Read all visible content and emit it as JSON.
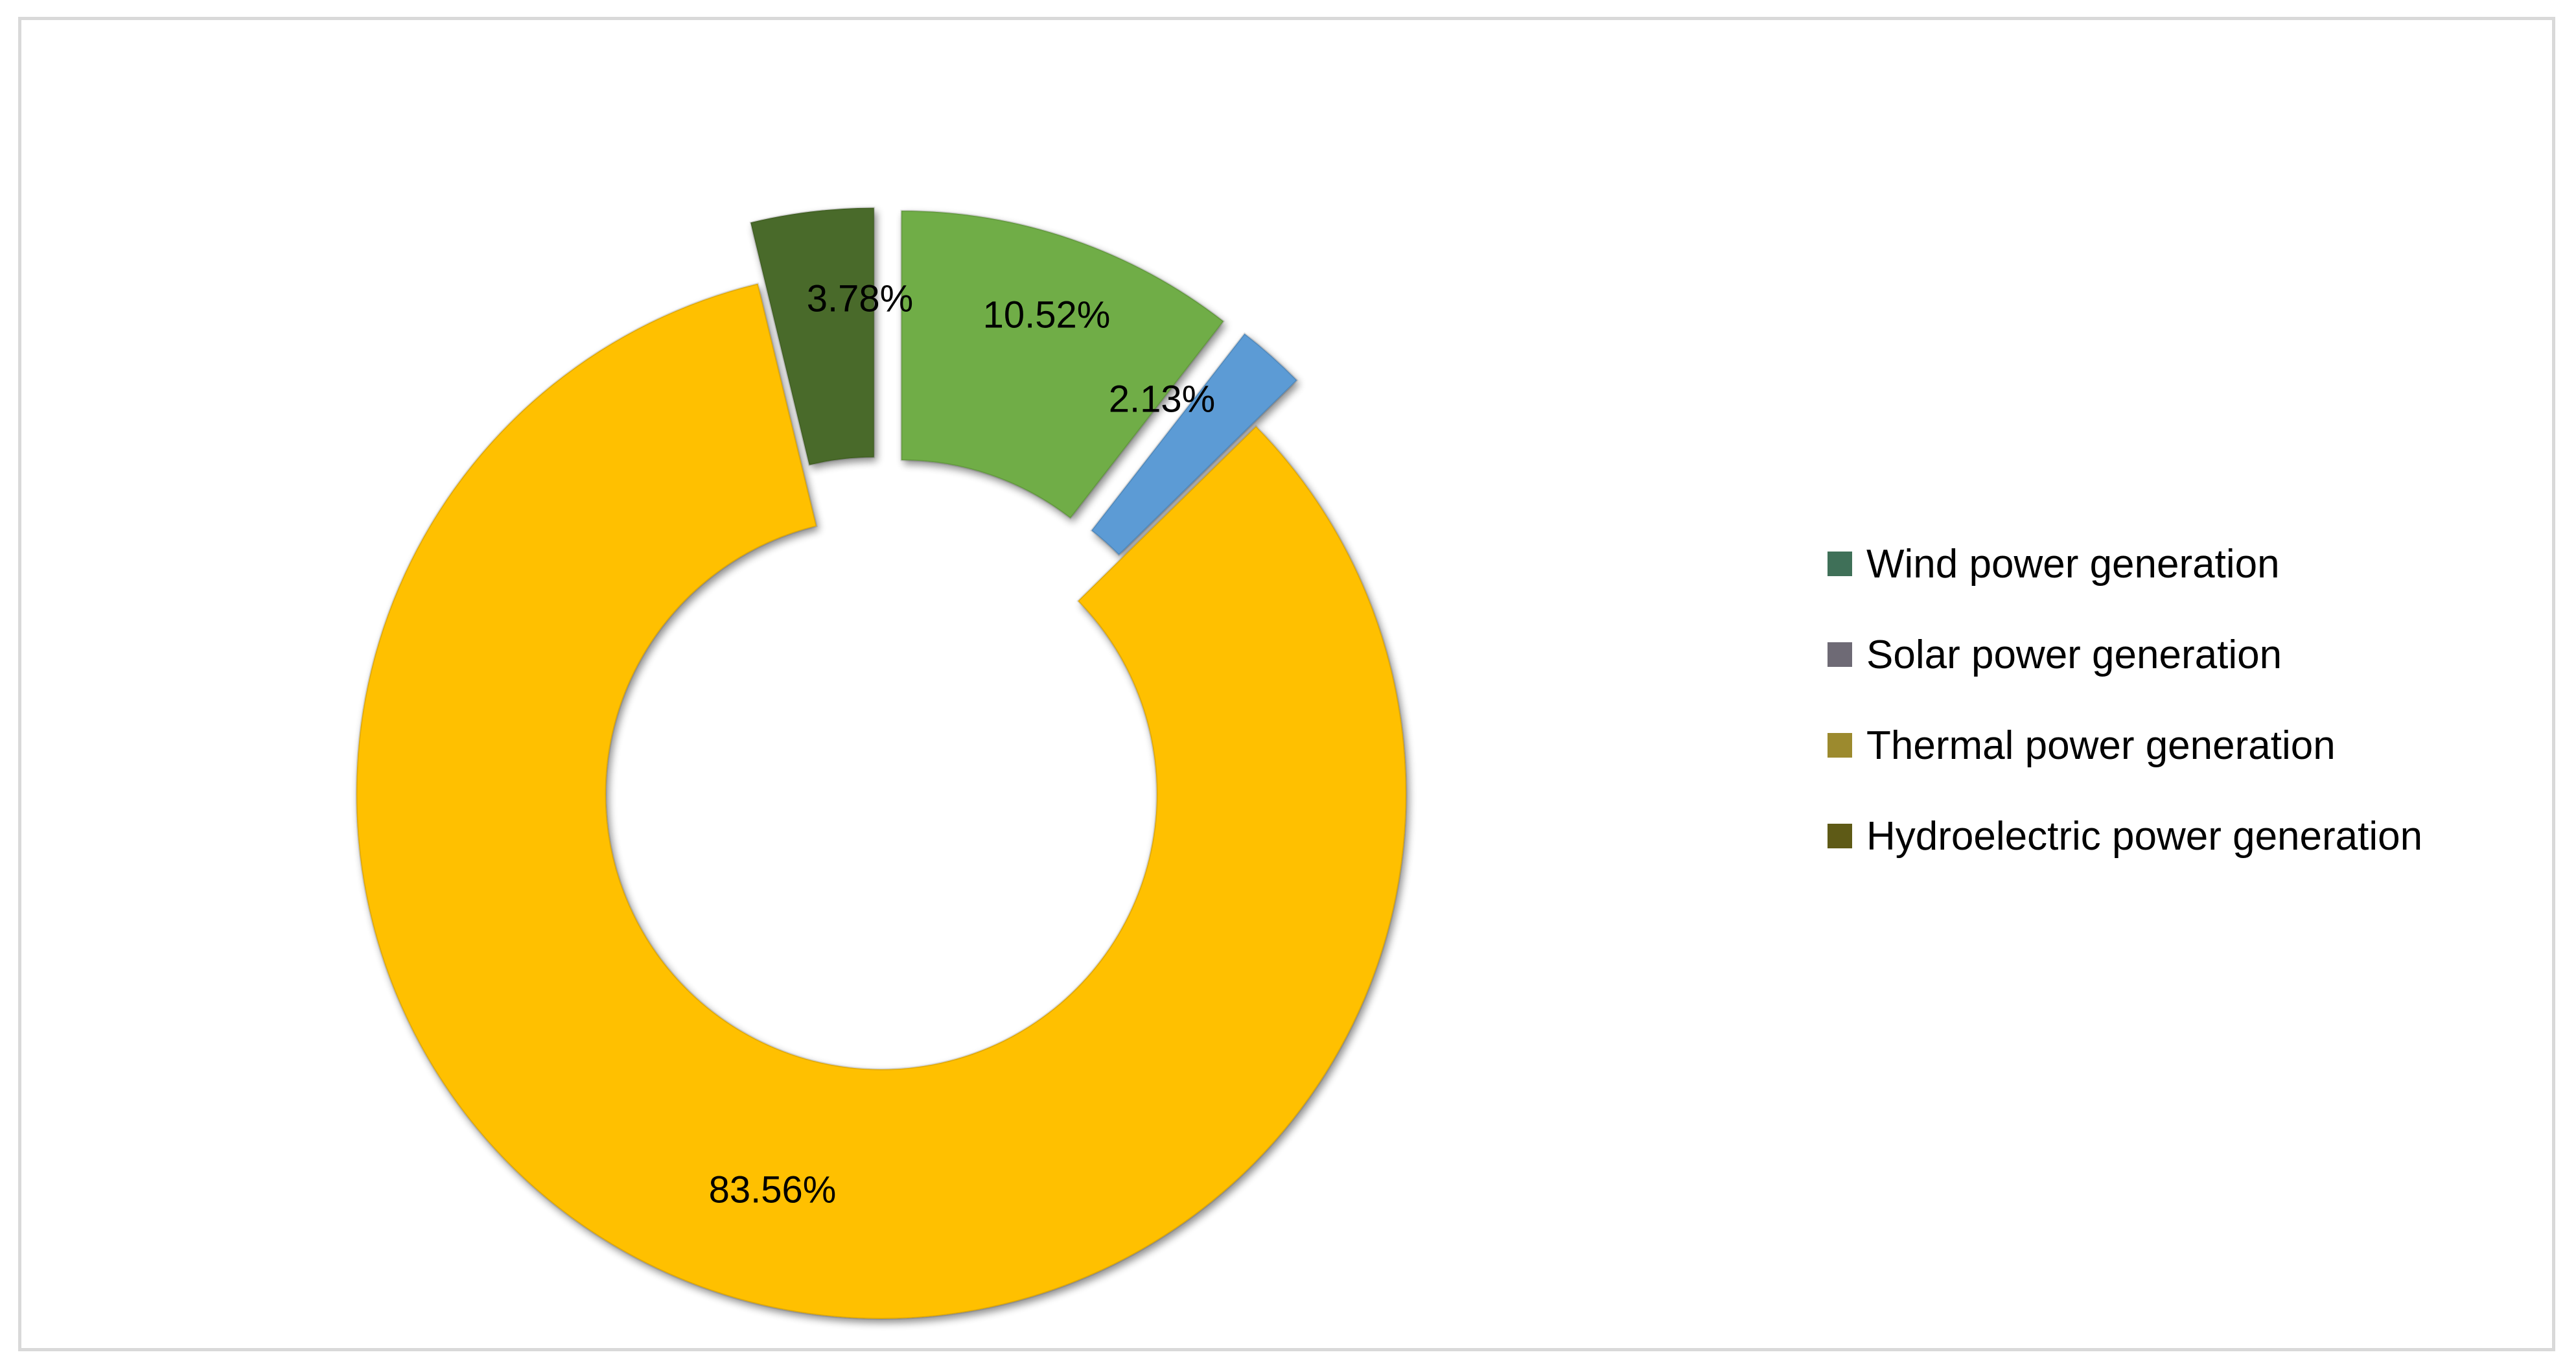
{
  "chart_data": {
    "type": "pie",
    "subtype": "donut-exploded",
    "title": "",
    "legend_position": "right",
    "slices": [
      {
        "name": "Wind power generation",
        "value": 10.52,
        "label": "10.52%",
        "fill": "#70ad47",
        "legend_color": "#3f7058"
      },
      {
        "name": "Solar power generation",
        "value": 2.13,
        "label": "2.13%",
        "fill": "#5b9bd5",
        "legend_color": "#6e6a75"
      },
      {
        "name": "Thermal power generation",
        "value": 83.56,
        "label": "83.56%",
        "fill": "#ffc000",
        "legend_color": "#9c8a2e"
      },
      {
        "name": "Hydroelectric power generation",
        "value": 3.78,
        "label": "3.78%",
        "fill": "#4a6b2a",
        "legend_color": "#5e5a16"
      }
    ]
  }
}
